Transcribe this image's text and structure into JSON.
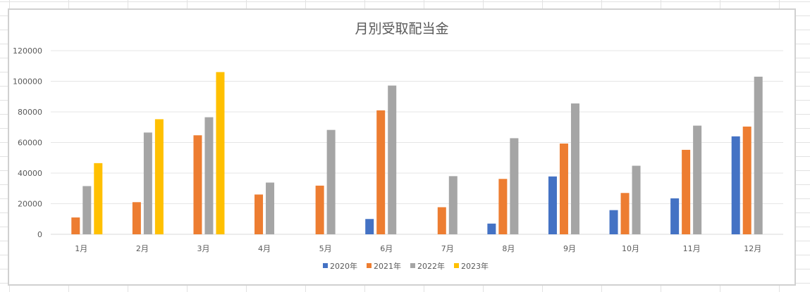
{
  "chart_data": {
    "type": "bar",
    "title": "月別受取配当金",
    "categories": [
      "1月",
      "2月",
      "3月",
      "4月",
      "5月",
      "6月",
      "7月",
      "8月",
      "9月",
      "10月",
      "11月",
      "12月"
    ],
    "ylim": [
      0,
      120000
    ],
    "yticks": [
      "0",
      "20000",
      "40000",
      "60000",
      "80000",
      "100000",
      "120000"
    ],
    "grid": true,
    "legend_position": "bottom",
    "series": [
      {
        "name": "2020年",
        "color": "#4472C4",
        "values": [
          0,
          0,
          0,
          0,
          0,
          10000,
          0,
          7000,
          37800,
          15800,
          23500,
          64000
        ]
      },
      {
        "name": "2021年",
        "color": "#ED7D31",
        "values": [
          11000,
          21000,
          64700,
          26000,
          31800,
          81000,
          17700,
          36200,
          59300,
          27000,
          55200,
          70400
        ]
      },
      {
        "name": "2022年",
        "color": "#A5A5A5",
        "values": [
          31500,
          66500,
          76500,
          33800,
          68200,
          97200,
          38000,
          62800,
          85500,
          44800,
          71000,
          103000
        ]
      },
      {
        "name": "2023年",
        "color": "#FFC000",
        "values": [
          46500,
          75200,
          106000,
          0,
          0,
          0,
          0,
          0,
          0,
          0,
          0,
          0
        ]
      }
    ]
  }
}
